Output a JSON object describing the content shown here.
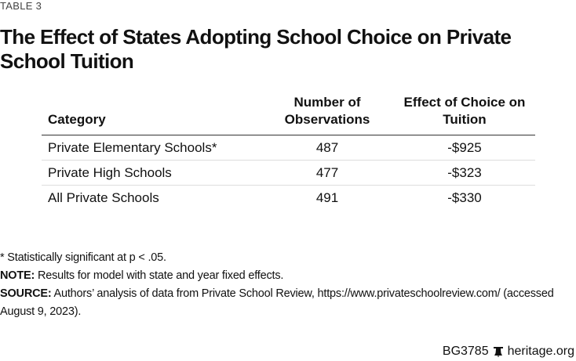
{
  "label": "TABLE 3",
  "title": "The Effect of States Adopting School Choice on Private School Tuition",
  "table": {
    "headers": [
      "Category",
      "Number of Observations",
      "Effect of Choice on Tuition"
    ],
    "rows": [
      [
        "Private Elementary Schools*",
        "487",
        "-$925"
      ],
      [
        "Private High Schools",
        "477",
        "-$323"
      ],
      [
        "All Private Schools",
        "491",
        "-$330"
      ]
    ]
  },
  "notes": {
    "significance": "* Statistically significant at p < .05.",
    "note_label": "NOTE:",
    "note_text": " Results for model with state and year fixed effects.",
    "source_label": "SOURCE:",
    "source_text": " Authors’ analysis of data from Private School Review, https://www.privateschoolreview.com/ (accessed August 9, 2023)."
  },
  "footer": {
    "code": "BG3785",
    "icon": "liberty-bell-icon",
    "site": "heritage.org"
  }
}
